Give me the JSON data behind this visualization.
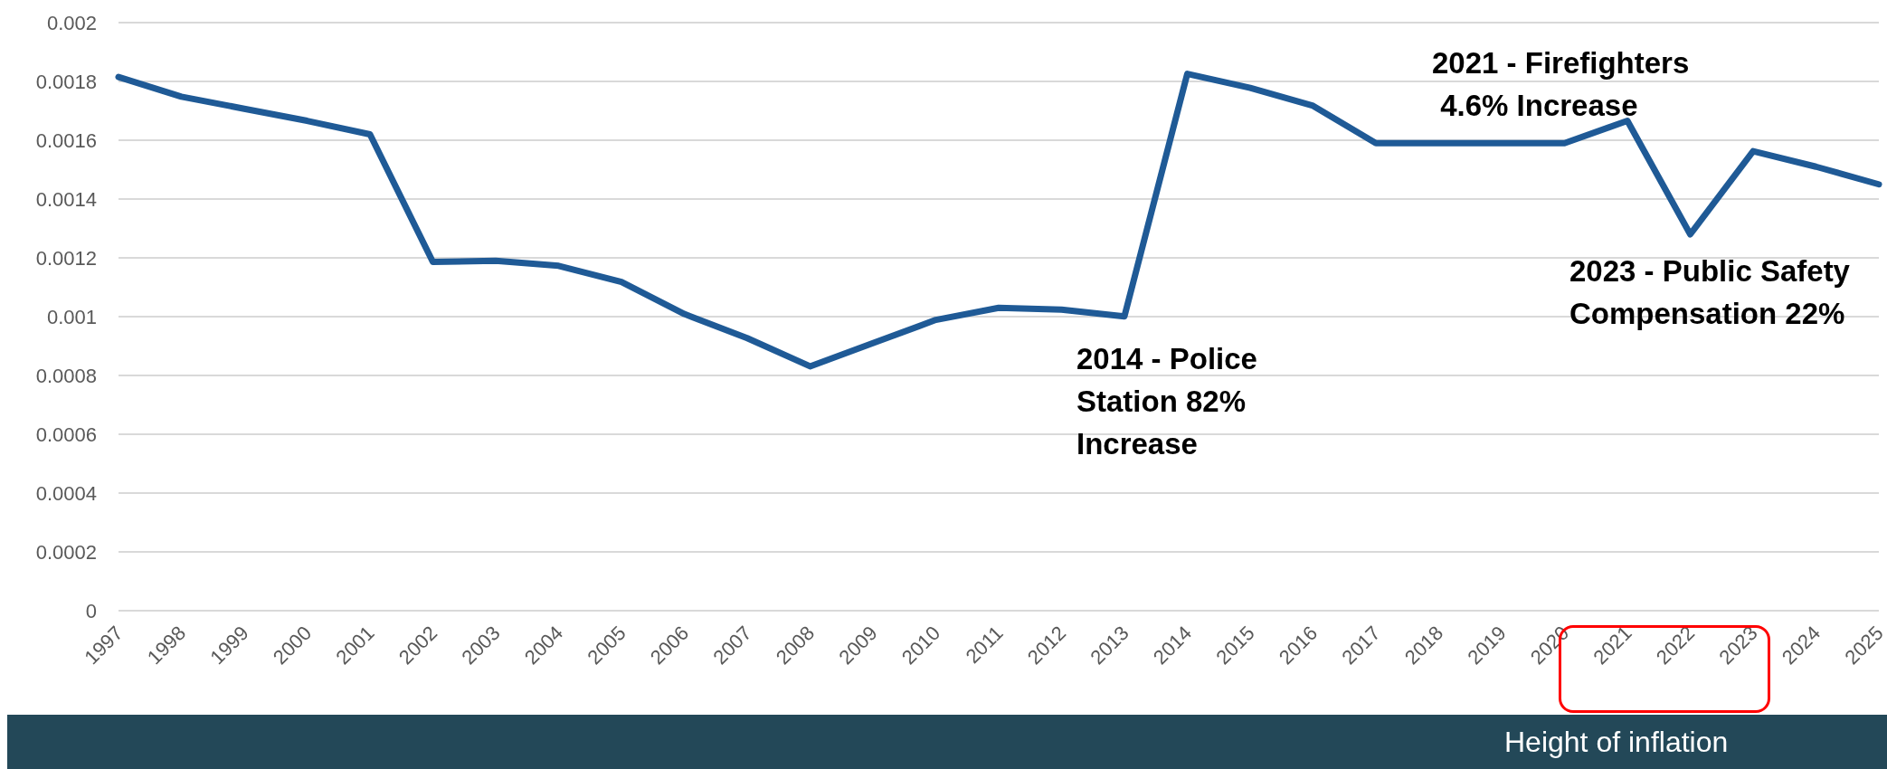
{
  "chart_data": {
    "type": "line",
    "categories": [
      "1997",
      "1998",
      "1999",
      "2000",
      "2001",
      "2002",
      "2003",
      "2004",
      "2005",
      "2006",
      "2007",
      "2008",
      "2009",
      "2010",
      "2011",
      "2012",
      "2013",
      "2014",
      "2015",
      "2016",
      "2017",
      "2018",
      "2019",
      "2020",
      "2021",
      "2022",
      "2023",
      "2024",
      "2025"
    ],
    "series": [
      {
        "color": "#1f5a96",
        "values": [
          0.001815,
          0.001748,
          0.001707,
          0.001666,
          0.00162,
          0.001186,
          0.00119,
          0.001173,
          0.001118,
          0.001009,
          0.000927,
          0.000831,
          0.00091,
          0.000989,
          0.00103,
          0.001024,
          0.001001,
          0.001826,
          0.001778,
          0.001717,
          0.00159,
          0.00159,
          0.00159,
          0.00159,
          0.001666,
          0.00128,
          0.001563,
          0.00151,
          0.00145
        ]
      }
    ],
    "ylim": [
      0,
      0.002
    ],
    "yticks": [
      0,
      0.0002,
      0.0004,
      0.0006,
      0.0008,
      0.001,
      0.0012,
      0.0014,
      0.0016,
      0.0018,
      0.002
    ],
    "grid": "y",
    "legend": false,
    "marker": "none",
    "line_style": "solid",
    "annotations": [
      "2014 - Police\nStation 82%\nIncrease",
      "2021 - Firefighters\n 4.6% Increase",
      "2023 - Public Safety\nCompensation 22%",
      "Height of inflation"
    ]
  }
}
